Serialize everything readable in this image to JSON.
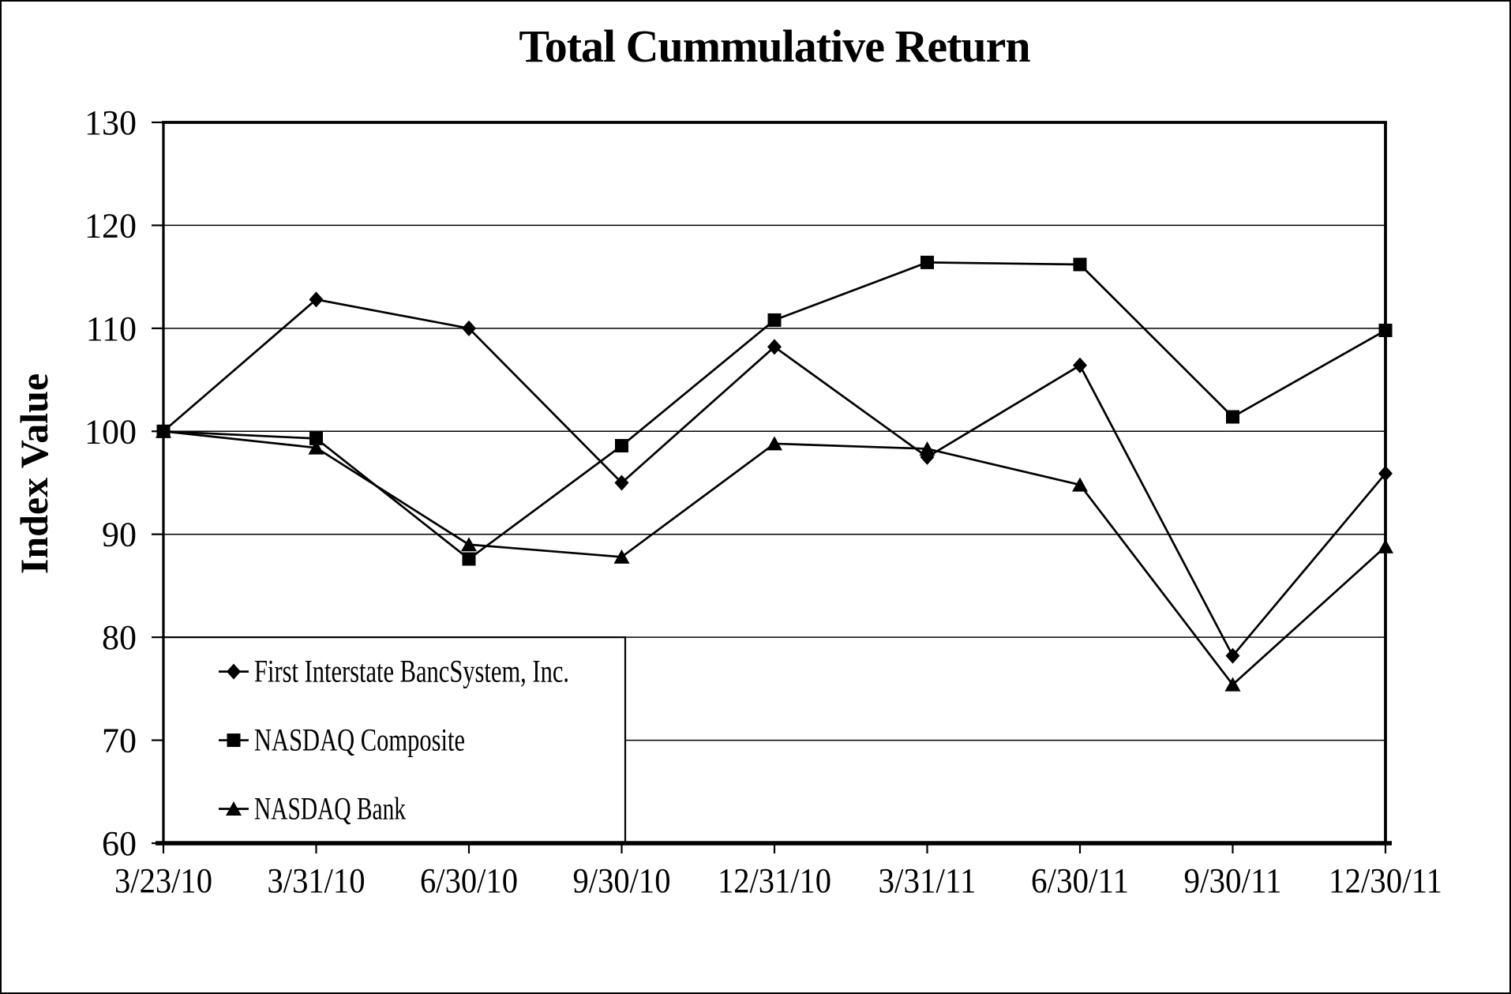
{
  "chart_data": {
    "type": "line",
    "title": "Total Cummulative Return",
    "ylabel": "Index Value",
    "xlabel": "",
    "categories": [
      "3/23/10",
      "3/31/10",
      "6/30/10",
      "9/30/10",
      "12/31/10",
      "3/31/11",
      "6/30/11",
      "9/30/11",
      "12/30/11"
    ],
    "series": [
      {
        "name": "First Interstate BancSystem, Inc.",
        "marker": "diamond",
        "values": [
          100,
          112.8,
          110.0,
          95.0,
          108.2,
          97.5,
          106.4,
          78.2,
          95.9
        ]
      },
      {
        "name": "NASDAQ Composite",
        "marker": "square",
        "values": [
          100,
          99.3,
          87.6,
          98.6,
          110.8,
          116.4,
          116.2,
          101.4,
          109.8
        ]
      },
      {
        "name": "NASDAQ Bank",
        "marker": "triangle",
        "values": [
          100,
          98.4,
          89.0,
          87.8,
          98.8,
          98.3,
          94.8,
          75.4,
          88.8
        ]
      }
    ],
    "ylim": [
      60,
      130
    ],
    "yticks": [
      60,
      70,
      80,
      90,
      100,
      110,
      120,
      130
    ],
    "grid": "horizontal",
    "legend_position": "inside-bottom-left",
    "line_color": "#000000",
    "background": "#ffffff"
  }
}
